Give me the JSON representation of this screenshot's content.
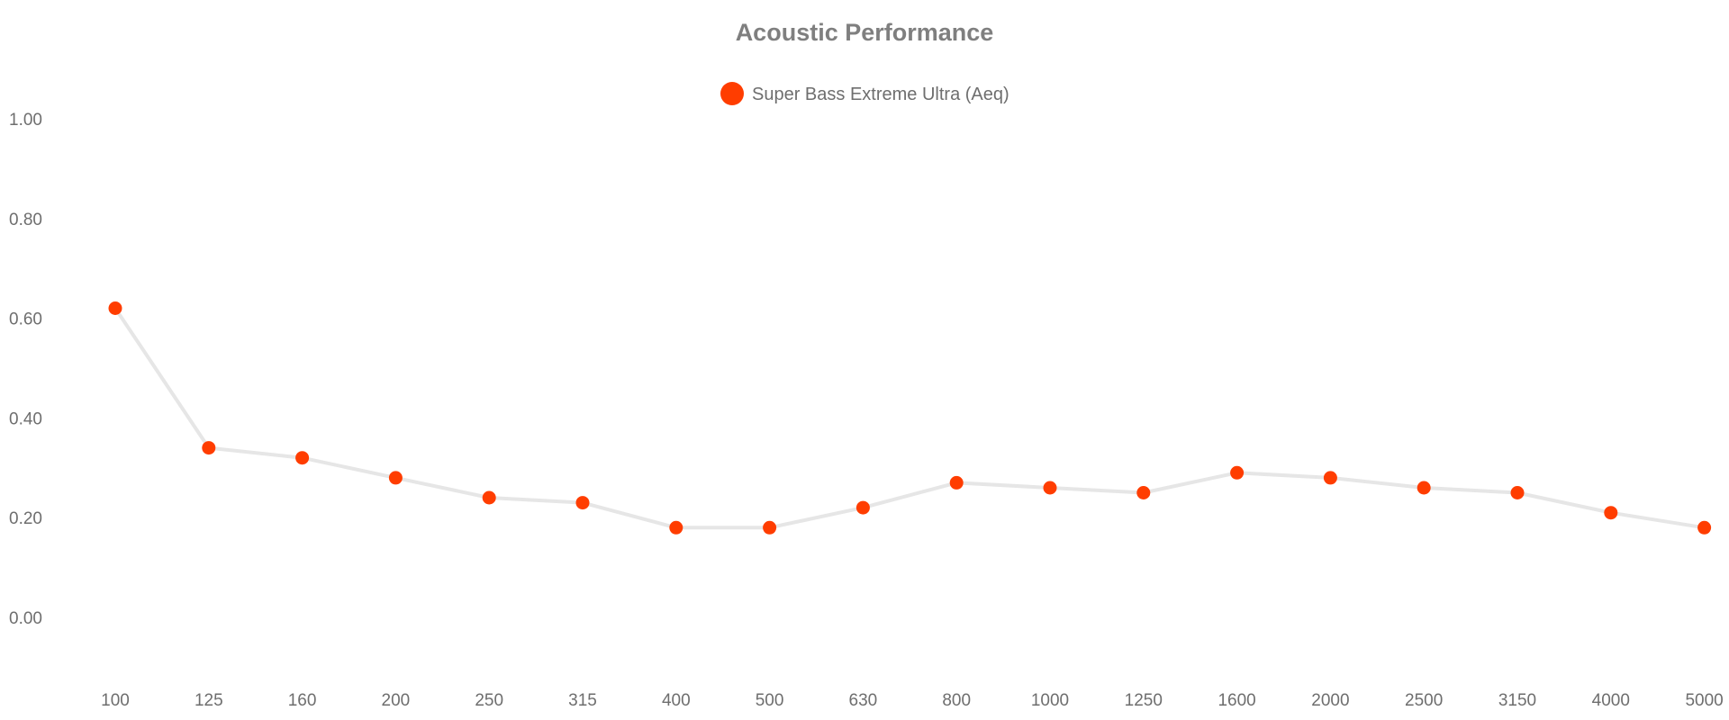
{
  "chart_data": {
    "type": "line",
    "title": "Acoustic Performance",
    "xlabel": "",
    "ylabel": "",
    "categories": [
      "100",
      "125",
      "160",
      "200",
      "250",
      "315",
      "400",
      "500",
      "630",
      "800",
      "1000",
      "1250",
      "1600",
      "2000",
      "2500",
      "3150",
      "4000",
      "5000"
    ],
    "series": [
      {
        "name": "Super Bass Extreme Ultra (Aeq)",
        "values": [
          0.62,
          0.34,
          0.32,
          0.28,
          0.24,
          0.23,
          0.18,
          0.18,
          0.22,
          0.27,
          0.26,
          0.25,
          0.29,
          0.28,
          0.26,
          0.25,
          0.21,
          0.18
        ],
        "marker_color": "#ff3d00",
        "line_color": "#e6e6e6"
      }
    ],
    "ylim": [
      -0.1,
      1.0
    ],
    "yticks": [
      "1.00",
      "0.80",
      "0.60",
      "0.40",
      "0.20",
      "0.00"
    ],
    "grid": false,
    "legend_position": "top-center"
  }
}
